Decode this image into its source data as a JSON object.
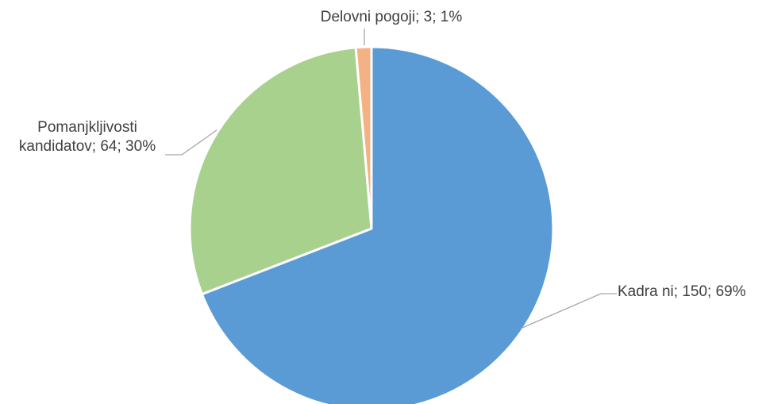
{
  "chart_data": {
    "type": "pie",
    "title": "",
    "slices": [
      {
        "category": "Kadra ni",
        "value": 150,
        "percent": "69%",
        "label": "Kadra ni; 150; 69%",
        "color": "#5B9BD5"
      },
      {
        "category": "Pomanjkljivosti kandidatov",
        "value": 64,
        "percent": "30%",
        "label_lines": [
          "Pomanjkljivosti",
          "kandidatov; 64; 30%"
        ],
        "color": "#A9D18E"
      },
      {
        "category": "Delovni pogoji",
        "value": 3,
        "percent": "1%",
        "label": "Delovni pogoji; 3; 1%",
        "color": "#F4B183"
      }
    ],
    "slice_border_color": "#ffffff",
    "leader_line_color": "#A6A6A6",
    "label_color": "#404040",
    "legend": "none"
  }
}
